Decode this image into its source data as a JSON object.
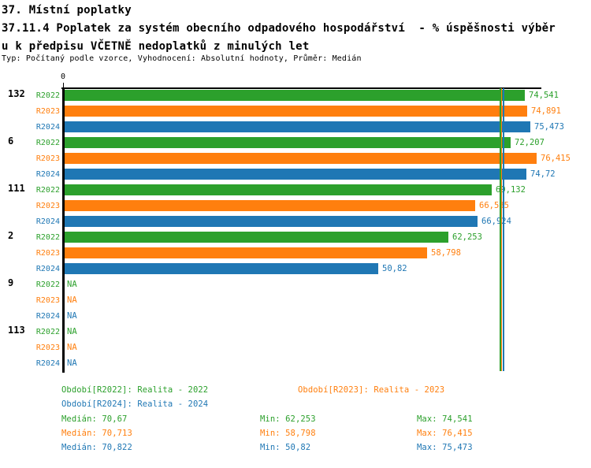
{
  "header": {
    "title": "37. Místní poplatky",
    "subtitle_line1": "37.11.4 Poplatek za systém obecního odpadového hospodářství  - % úspěšnosti výběr",
    "subtitle_line2": "u k předpisu VČETNĚ nedoplatků z minulých let",
    "meta": "Typ: Počítaný podle vzorce, Vyhodnocení: Absolutní hodnoty, Průměr: Medián"
  },
  "chart_data": {
    "type": "bar",
    "orientation": "horizontal",
    "title": "37.11.4 Poplatek za systém obecního odpadového hospodářství - % úspěšnosti výběru k předpisu VČETNĚ nedoplatků z minulých let",
    "xlim": [
      0,
      77.2
    ],
    "x_origin_label": "0",
    "grid": false,
    "na_text": "NA",
    "series": [
      {
        "name": "R2022",
        "label": "R2022",
        "color": "#2ca02c",
        "median": 70.67,
        "median_display": "70,67"
      },
      {
        "name": "R2023",
        "label": "R2023",
        "color": "#ff7f0e",
        "median": 70.713,
        "median_display": "70,713"
      },
      {
        "name": "R2024",
        "label": "R2024",
        "color": "#1f77b4",
        "median": 70.822,
        "median_display": "70,822"
      }
    ],
    "categories": [
      "132",
      "6",
      "111",
      "2",
      "9",
      "113"
    ],
    "groups": [
      {
        "category": "132",
        "bars": [
          {
            "series": "R2022",
            "value": 74.541,
            "display": "74,541"
          },
          {
            "series": "R2023",
            "value": 74.891,
            "display": "74,891"
          },
          {
            "series": "R2024",
            "value": 75.473,
            "display": "75,473"
          }
        ]
      },
      {
        "category": "6",
        "bars": [
          {
            "series": "R2022",
            "value": 72.207,
            "display": "72,207"
          },
          {
            "series": "R2023",
            "value": 76.415,
            "display": "76,415"
          },
          {
            "series": "R2024",
            "value": 74.72,
            "display": "74,72"
          }
        ]
      },
      {
        "category": "111",
        "bars": [
          {
            "series": "R2022",
            "value": 69.132,
            "display": "69,132"
          },
          {
            "series": "R2023",
            "value": 66.535,
            "display": "66,535"
          },
          {
            "series": "R2024",
            "value": 66.924,
            "display": "66,924"
          }
        ]
      },
      {
        "category": "2",
        "bars": [
          {
            "series": "R2022",
            "value": 62.253,
            "display": "62,253"
          },
          {
            "series": "R2023",
            "value": 58.798,
            "display": "58,798"
          },
          {
            "series": "R2024",
            "value": 50.82,
            "display": "50,82"
          }
        ]
      },
      {
        "category": "9",
        "bars": [
          {
            "series": "R2022",
            "value": null,
            "display": "NA"
          },
          {
            "series": "R2023",
            "value": null,
            "display": "NA"
          },
          {
            "series": "R2024",
            "value": null,
            "display": "NA"
          }
        ]
      },
      {
        "category": "113",
        "bars": [
          {
            "series": "R2022",
            "value": null,
            "display": "NA"
          },
          {
            "series": "R2023",
            "value": null,
            "display": "NA"
          },
          {
            "series": "R2024",
            "value": null,
            "display": "NA"
          }
        ]
      }
    ]
  },
  "legend": {
    "items": [
      {
        "label": "Období[R2022]: Realita - 2022",
        "color": "#2ca02c"
      },
      {
        "label": "Období[R2023]: Realita - 2023",
        "color": "#ff7f0e"
      },
      {
        "label": "Období[R2024]: Realita - 2024",
        "color": "#1f77b4"
      }
    ]
  },
  "stats": {
    "rows": [
      {
        "series": "R2022",
        "color": "#2ca02c",
        "median": "Medián: 70,67",
        "min": "Min: 62,253",
        "max": "Max: 74,541"
      },
      {
        "series": "R2023",
        "color": "#ff7f0e",
        "median": "Medián: 70,713",
        "min": "Min: 58,798",
        "max": "Max: 76,415"
      },
      {
        "series": "R2024",
        "color": "#1f77b4",
        "median": "Medián: 70,822",
        "min": "Min: 50,82",
        "max": "Max: 75,473"
      }
    ]
  }
}
